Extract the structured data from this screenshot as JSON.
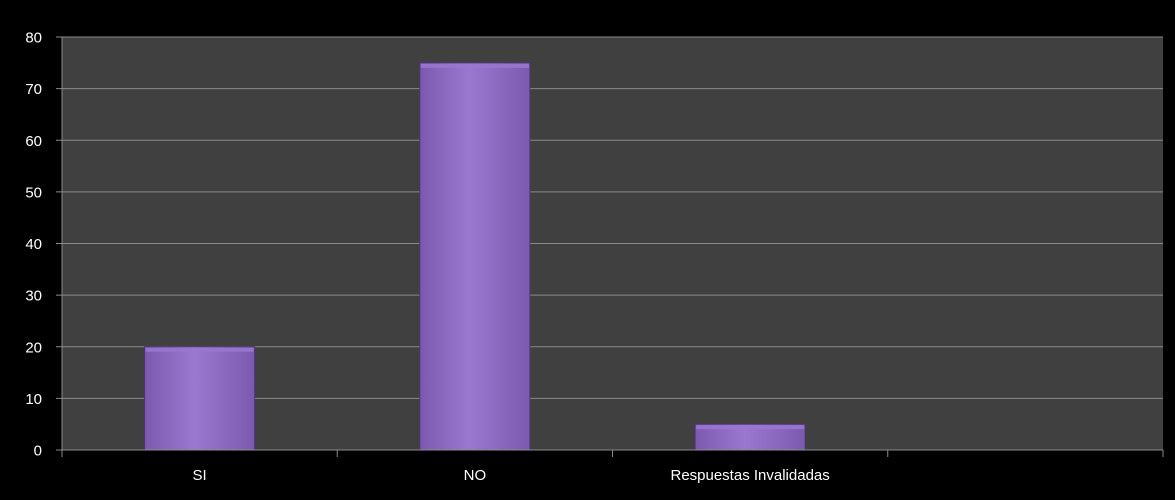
{
  "chart_data": {
    "type": "bar",
    "title": "",
    "xlabel": "",
    "ylabel": "",
    "categories": [
      "SI",
      "NO",
      "Respuestas Invalidadas",
      ""
    ],
    "values": [
      20,
      75,
      5,
      null
    ],
    "ylim": [
      0,
      80
    ],
    "yticks": [
      "0",
      "10",
      "20",
      "30",
      "40",
      "50",
      "60",
      "70",
      "80"
    ],
    "grid": true,
    "legend": "none"
  },
  "colors": {
    "background": "#000000",
    "plot_area": "#404040",
    "gridline": "#8a8a8a",
    "axis": "#8a8a8a",
    "bar_fill": "#7b5aae",
    "bar_highlight": "#9a78cf",
    "bar_edge": "#4d3476",
    "text": "#ffffff"
  }
}
